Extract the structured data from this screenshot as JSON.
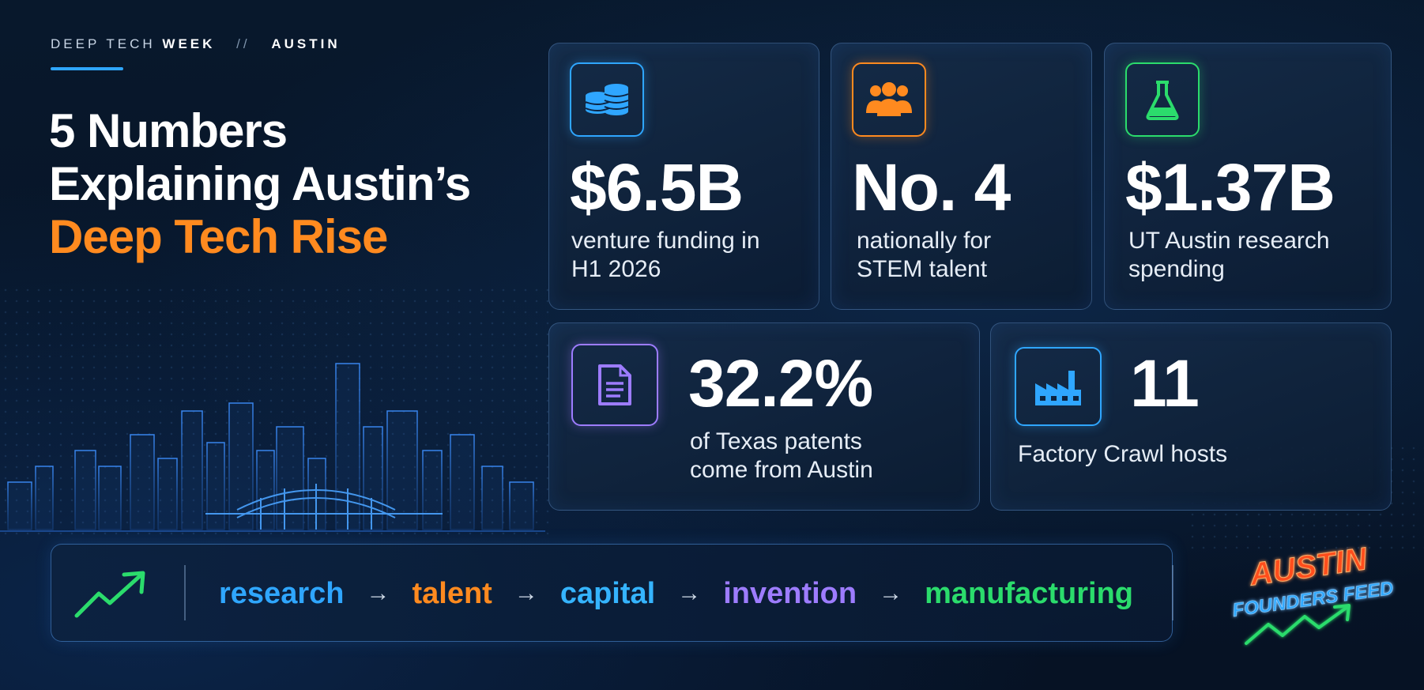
{
  "header": {
    "eyebrow_light": "DEEP TECH",
    "eyebrow_strong": "WEEK",
    "eyebrow_sep": "//",
    "eyebrow_city": "AUSTIN"
  },
  "title": {
    "line1": "5 Numbers",
    "line2": "Explaining Austin’s",
    "line3": "Deep Tech Rise"
  },
  "stats": [
    {
      "value": "$6.5B",
      "desc_line1": "venture funding in",
      "desc_line2": "H1 2026",
      "icon": "coins-icon",
      "accent": "#2fa6ff"
    },
    {
      "value": "No. 4",
      "desc_line1": "nationally for",
      "desc_line2": "STEM talent",
      "icon": "people-icon",
      "accent": "#ff8a1f"
    },
    {
      "value": "$1.37B",
      "desc_line1": "UT Austin research",
      "desc_line2": "spending",
      "icon": "flask-icon",
      "accent": "#2bdc6c"
    },
    {
      "value": "32.2%",
      "desc_line1": "of Texas patents",
      "desc_line2": "come from Austin",
      "icon": "document-icon",
      "accent": "#9d7cff"
    },
    {
      "value": "11",
      "desc_line1": "Factory Crawl hosts",
      "desc_line2": "",
      "icon": "factory-icon",
      "accent": "#2fa6ff"
    }
  ],
  "flow": {
    "steps": [
      {
        "label": "research",
        "color": "#2fa6ff"
      },
      {
        "label": "talent",
        "color": "#ff8a1f"
      },
      {
        "label": "capital",
        "color": "#35b4ff"
      },
      {
        "label": "invention",
        "color": "#9d7cff"
      },
      {
        "label": "manufacturing",
        "color": "#2bdc6c"
      }
    ],
    "arrow": "→"
  },
  "brand": {
    "line1": "AUSTIN",
    "line2": "FOUNDERS FEED"
  },
  "colors": {
    "background": "#071426",
    "accent_orange": "#ff8a1f",
    "accent_blue": "#2fa6ff"
  }
}
